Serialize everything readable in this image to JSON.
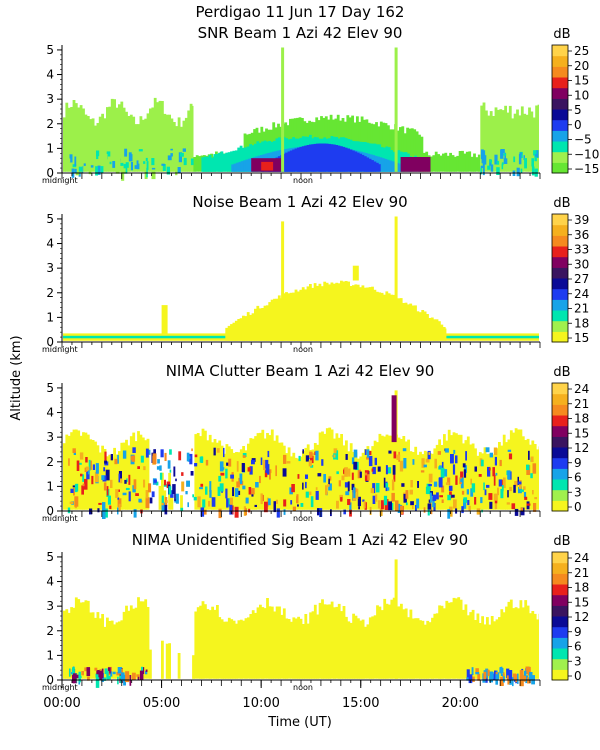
{
  "figure": {
    "title": "Perdigao   11 Jun 17 Day 162",
    "y_label": "Altitude (km)",
    "x_label": "Time (UT)"
  },
  "chart_data": [
    {
      "type": "heatmap",
      "title": "SNR Beam 1 Azi   42 Elev 90",
      "unit": "dB",
      "colorbar_ticks": [
        "25",
        "20",
        "15",
        "10",
        "5",
        "0",
        "−5",
        "−10",
        "−15"
      ],
      "colorbar_range": [
        -15,
        27
      ],
      "colors": [
        "#66e633",
        "#a0f04e",
        "#00e6b0",
        "#17a3e8",
        "#1e3cf0",
        "#0a0a96",
        "#3a1460",
        "#800060",
        "#e8201c",
        "#f58a1f",
        "#f5b01e",
        "#ffd34a"
      ],
      "ylim": [
        0,
        5.2
      ],
      "y_ticks": [
        0,
        1,
        2,
        3,
        4,
        5
      ],
      "x_tick_labels": [
        "midnight",
        "noon"
      ]
    },
    {
      "type": "heatmap",
      "title": "Noise Beam 1 Azi   42 Elev 90",
      "unit": "dB",
      "colorbar_ticks": [
        "39",
        "36",
        "33",
        "30",
        "27",
        "24",
        "21",
        "18",
        "15"
      ],
      "colorbar_range": [
        15,
        40
      ],
      "colors": [
        "#f5f51e",
        "#a0f04e",
        "#00e6b0",
        "#17a3e8",
        "#1e3cf0",
        "#0a0a96",
        "#3a1460",
        "#800060",
        "#e8201c",
        "#f58a1f",
        "#f5b01e",
        "#ffd34a"
      ],
      "ylim": [
        0,
        5.2
      ],
      "y_ticks": [
        0,
        1,
        2,
        3,
        4,
        5
      ],
      "x_tick_labels": [
        "midnight",
        "noon"
      ]
    },
    {
      "type": "heatmap",
      "title": "NIMA Clutter Beam 1 Azi   42 Elev 90",
      "unit": "dB",
      "colorbar_ticks": [
        "24",
        "21",
        "18",
        "15",
        "12",
        "9",
        "6",
        "3",
        "0"
      ],
      "colorbar_range": [
        0,
        25
      ],
      "colors": [
        "#f5f51e",
        "#a0f04e",
        "#00e6b0",
        "#17a3e8",
        "#1e3cf0",
        "#0a0a96",
        "#3a1460",
        "#800060",
        "#e8201c",
        "#f58a1f",
        "#f5b01e",
        "#ffd34a"
      ],
      "ylim": [
        0,
        5.2
      ],
      "y_ticks": [
        0,
        1,
        2,
        3,
        4,
        5
      ],
      "x_tick_labels": [
        "midnight",
        "noon"
      ]
    },
    {
      "type": "heatmap",
      "title": "NIMA Unidentified Sig Beam 1 Azi   42 Elev 90",
      "unit": "dB",
      "colorbar_ticks": [
        "24",
        "21",
        "18",
        "15",
        "12",
        "9",
        "6",
        "3",
        "0"
      ],
      "colorbar_range": [
        0,
        25
      ],
      "colors": [
        "#f5f51e",
        "#a0f04e",
        "#00e6b0",
        "#17a3e8",
        "#1e3cf0",
        "#0a0a96",
        "#3a1460",
        "#800060",
        "#e8201c",
        "#f58a1f",
        "#f5b01e",
        "#ffd34a"
      ],
      "ylim": [
        0,
        5.2
      ],
      "y_ticks": [
        0,
        1,
        2,
        3,
        4,
        5
      ],
      "x_tick_labels": [
        "midnight",
        "noon"
      ],
      "x_axis_ticks": [
        {
          "hour": 0,
          "label": "00:00"
        },
        {
          "hour": 5,
          "label": "05:00"
        },
        {
          "hour": 10,
          "label": "10:00"
        },
        {
          "hour": 15,
          "label": "15:00"
        },
        {
          "hour": 20,
          "label": "20:00"
        }
      ]
    }
  ]
}
